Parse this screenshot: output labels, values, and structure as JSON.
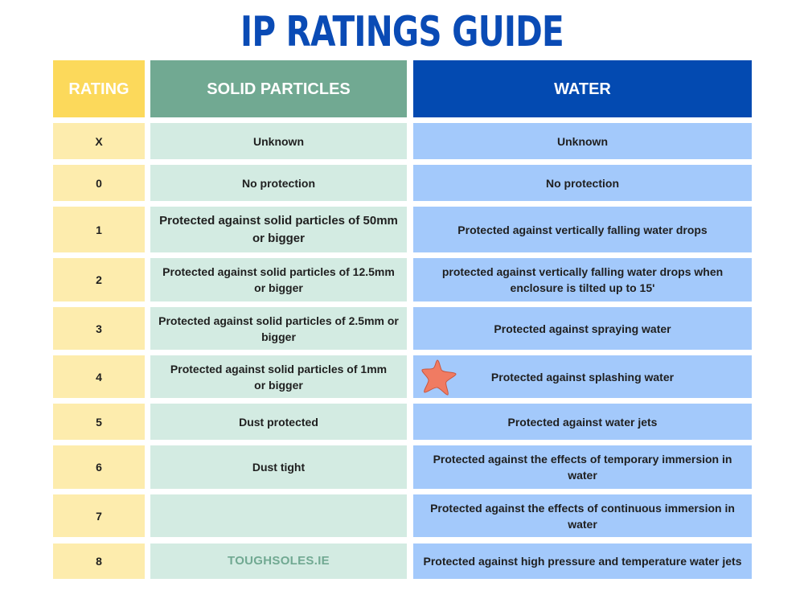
{
  "title": "IP RATINGS GUIDE",
  "headers": {
    "rating": "RATING",
    "solid": "SOLID PARTICLES",
    "water": "WATER"
  },
  "rows": [
    {
      "rating": "X",
      "solid": "Unknown",
      "water": "Unknown"
    },
    {
      "rating": "0",
      "solid": "No protection",
      "water": "No protection"
    },
    {
      "rating": "1",
      "solid": "Protected against solid particles of 50mm or bigger",
      "water": "Protected against vertically falling water drops"
    },
    {
      "rating": "2",
      "solid": "Protected against solid particles of 12.5mm or bigger",
      "water": "protected against vertically falling water drops when enclosure is tilted up to 15'"
    },
    {
      "rating": "3",
      "solid": "Protected against solid particles of 2.5mm or bigger",
      "water": "Protected against spraying water"
    },
    {
      "rating": "4",
      "solid": "Protected against solid particles of 1mm or bigger",
      "water": "Protected against splashing water"
    },
    {
      "rating": "5",
      "solid": "Dust protected",
      "water": "Protected against water jets"
    },
    {
      "rating": "6",
      "solid": "Dust tight",
      "water": "Protected against the effects of temporary immersion in water"
    },
    {
      "rating": "7",
      "solid": "",
      "water": "Protected against the effects of continuous immersion in water"
    },
    {
      "rating": "8",
      "solid": "TOUGHSOLES.IE",
      "water": "Protected against high pressure and temperature water jets"
    }
  ],
  "colors": {
    "title": "#0a4bb5",
    "rating_header": "#fcd95b",
    "rating_cell": "#fdecad",
    "solid_header": "#71a992",
    "solid_cell": "#d3ebe2",
    "water_header": "#034ab1",
    "water_cell": "#a3c9fb",
    "star": "#f07b62"
  },
  "icons": {
    "star": "starfish-icon"
  }
}
